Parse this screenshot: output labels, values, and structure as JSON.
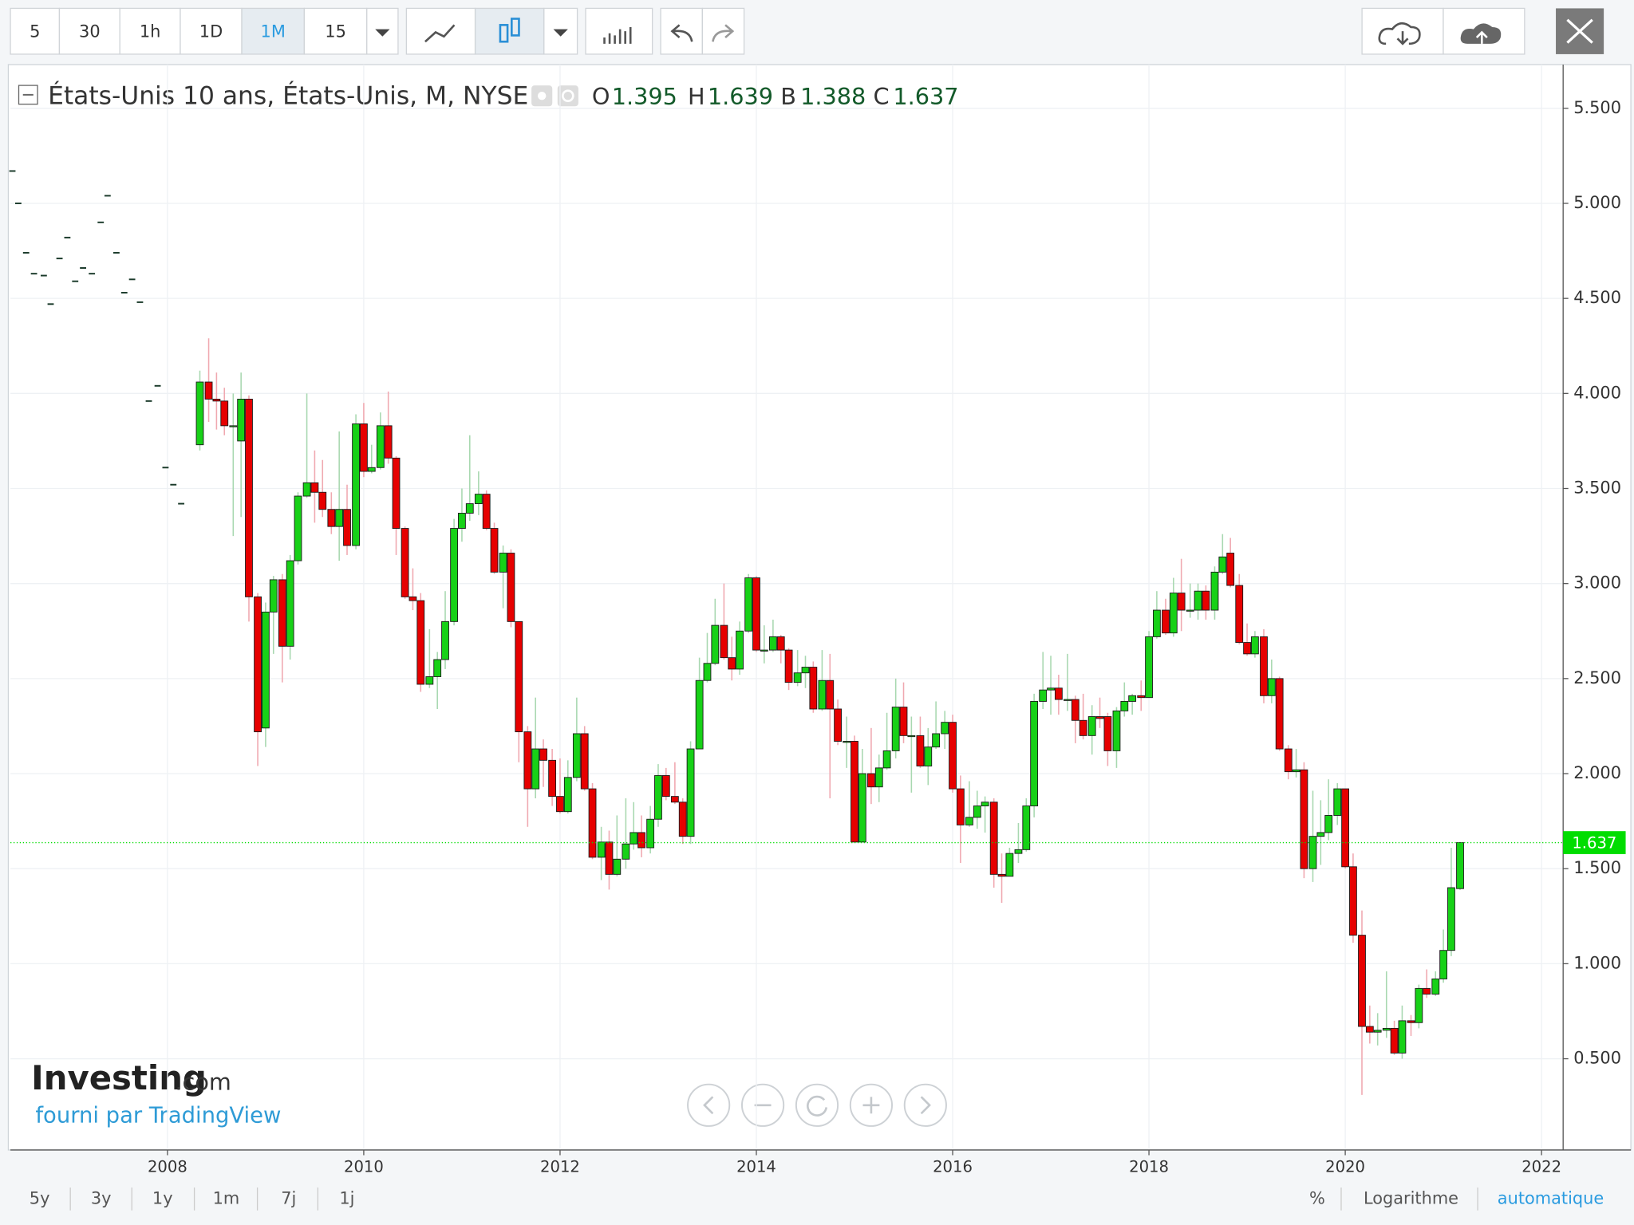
{
  "toolbar": {
    "intervals": [
      "5",
      "30",
      "1h",
      "1D",
      "1M",
      "15"
    ],
    "active": "1M"
  },
  "bottom_bar": {
    "ranges": [
      "5y",
      "3y",
      "1y",
      "1m",
      "7j",
      "1j"
    ],
    "options": [
      "%",
      "Logarithme",
      "automatique"
    ]
  },
  "logo": {
    "name": "Investing",
    "suffix": ".com",
    "credit": "fourni par TradingView"
  },
  "chart_data": {
    "type": "candlestick",
    "title": "États-Unis 10 ans, États-Unis, M, NYSE",
    "ohlc_labels": [
      "O",
      "H",
      "B",
      "C"
    ],
    "up_color": "#17d117",
    "down_color": "#e60000",
    "price_line_color": "#00dd00",
    "xlim": [
      2006.4,
      2022.22
    ],
    "xticks": [
      2008,
      2010,
      2012,
      2014,
      2016,
      2018,
      2020,
      2022
    ],
    "ylim": [
      0.02,
      5.73
    ],
    "yticks": [
      {
        "value": 0.5,
        "label": "0.500"
      },
      {
        "value": 1,
        "label": "1.000"
      },
      {
        "value": 1.5,
        "label": "1.500"
      },
      {
        "value": 2,
        "label": "2.000"
      },
      {
        "value": 2.5,
        "label": "2.500"
      },
      {
        "value": 3,
        "label": "3.000"
      },
      {
        "value": 3.5,
        "label": "3.500"
      },
      {
        "value": 4,
        "label": "4.000"
      },
      {
        "value": 4.5,
        "label": "4.500"
      },
      {
        "value": 5,
        "label": "5.000"
      },
      {
        "value": 5.5,
        "label": "5.500"
      }
    ],
    "grid": true,
    "early_prices": {
      "x": [
        2006.42,
        2006.48,
        2006.56,
        2006.64,
        2006.74,
        2006.81,
        2006.9,
        2006.98,
        2007.06,
        2007.14,
        2007.23,
        2007.32,
        2007.39,
        2007.48,
        2007.56,
        2007.64,
        2007.72,
        2007.81,
        2007.9,
        2007.98,
        2008.06,
        2008.14
      ],
      "values": [
        5.17,
        5.0,
        4.74,
        4.63,
        4.62,
        4.47,
        4.71,
        4.82,
        4.59,
        4.66,
        4.63,
        4.9,
        5.04,
        4.74,
        4.53,
        4.6,
        4.48,
        3.96,
        4.04,
        3.61,
        3.52,
        3.42
      ]
    },
    "x": [
      2008.33,
      2008.42,
      2008.5,
      2008.58,
      2008.67,
      2008.75,
      2008.83,
      2008.92,
      2009,
      2009.08,
      2009.17,
      2009.25,
      2009.33,
      2009.42,
      2009.5,
      2009.58,
      2009.67,
      2009.75,
      2009.83,
      2009.92,
      2010,
      2010.08,
      2010.17,
      2010.25,
      2010.33,
      2010.42,
      2010.5,
      2010.58,
      2010.67,
      2010.75,
      2010.83,
      2010.92,
      2011,
      2011.08,
      2011.17,
      2011.25,
      2011.33,
      2011.42,
      2011.5,
      2011.58,
      2011.67,
      2011.75,
      2011.83,
      2011.92,
      2012,
      2012.08,
      2012.17,
      2012.25,
      2012.33,
      2012.42,
      2012.5,
      2012.58,
      2012.67,
      2012.75,
      2012.83,
      2012.92,
      2013,
      2013.08,
      2013.17,
      2013.25,
      2013.33,
      2013.42,
      2013.5,
      2013.58,
      2013.67,
      2013.75,
      2013.83,
      2013.92,
      2014,
      2014.08,
      2014.17,
      2014.25,
      2014.33,
      2014.42,
      2014.5,
      2014.58,
      2014.67,
      2014.75,
      2014.83,
      2014.92,
      2015,
      2015.08,
      2015.17,
      2015.25,
      2015.33,
      2015.42,
      2015.5,
      2015.58,
      2015.67,
      2015.75,
      2015.83,
      2015.92,
      2016,
      2016.08,
      2016.17,
      2016.25,
      2016.33,
      2016.42,
      2016.5,
      2016.58,
      2016.67,
      2016.75,
      2016.83,
      2016.92,
      2017,
      2017.08,
      2017.17,
      2017.25,
      2017.33,
      2017.42,
      2017.5,
      2017.58,
      2017.67,
      2017.75,
      2017.83,
      2017.92,
      2018,
      2018.08,
      2018.17,
      2018.25,
      2018.33,
      2018.42,
      2018.5,
      2018.58,
      2018.67,
      2018.75,
      2018.83,
      2018.92,
      2019,
      2019.08,
      2019.17,
      2019.25,
      2019.33,
      2019.42,
      2019.5,
      2019.58,
      2019.67,
      2019.75,
      2019.83,
      2019.92,
      2020,
      2020.08,
      2020.17,
      2020.25,
      2020.33,
      2020.42,
      2020.5,
      2020.58,
      2020.67,
      2020.75,
      2020.83,
      2020.92,
      2021,
      2021.08,
      2021.17
    ],
    "open": [
      3.73,
      4.06,
      3.97,
      3.96,
      3.83,
      3.75,
      3.97,
      2.93,
      2.24,
      2.85,
      3.02,
      2.67,
      3.12,
      3.46,
      3.53,
      3.48,
      3.39,
      3.3,
      3.39,
      3.2,
      3.84,
      3.59,
      3.61,
      3.83,
      3.66,
      3.29,
      2.93,
      2.91,
      2.47,
      2.51,
      2.6,
      2.8,
      3.29,
      3.37,
      3.42,
      3.47,
      3.29,
      3.06,
      3.16,
      2.8,
      2.22,
      1.92,
      2.13,
      2.07,
      1.88,
      1.8,
      1.98,
      2.21,
      1.92,
      1.56,
      1.64,
      1.47,
      1.55,
      1.63,
      1.69,
      1.61,
      1.76,
      1.99,
      1.88,
      1.85,
      1.67,
      2.13,
      2.49,
      2.58,
      2.78,
      2.61,
      2.55,
      2.75,
      3.03,
      2.65,
      2.65,
      2.72,
      2.65,
      2.48,
      2.53,
      2.56,
      2.34,
      2.49,
      2.34,
      2.17,
      2.17,
      1.64,
      2.0,
      1.93,
      2.03,
      2.12,
      2.35,
      2.2,
      2.2,
      2.04,
      2.14,
      2.21,
      2.27,
      1.92,
      1.73,
      1.77,
      1.83,
      1.85,
      1.47,
      1.46,
      1.58,
      1.6,
      1.83,
      2.38,
      2.44,
      2.45,
      2.39,
      2.39,
      2.28,
      2.2,
      2.3,
      2.3,
      2.12,
      2.33,
      2.38,
      2.41,
      2.4,
      2.72,
      2.86,
      2.74,
      2.95,
      2.86,
      2.86,
      2.96,
      2.86,
      3.06,
      3.16,
      2.99,
      2.69,
      2.63,
      2.72,
      2.41,
      2.5,
      2.13,
      2.01,
      2.02,
      1.5,
      1.67,
      1.69,
      1.78,
      1.92,
      1.51,
      1.15,
      0.67,
      0.64,
      0.65,
      0.66,
      0.53,
      0.7,
      0.69,
      0.87,
      0.84,
      0.92,
      1.07,
      1.395
    ],
    "high": [
      4.12,
      4.29,
      4.11,
      4.03,
      4.0,
      4.11,
      3.99,
      2.95,
      2.9,
      3.04,
      3.05,
      3.15,
      3.48,
      4.0,
      3.7,
      3.65,
      3.48,
      3.8,
      3.52,
      3.89,
      3.95,
      3.73,
      3.9,
      4.01,
      3.67,
      3.3,
      3.08,
      2.95,
      2.76,
      2.64,
      2.96,
      3.34,
      3.5,
      3.78,
      3.59,
      3.49,
      3.32,
      3.2,
      3.18,
      2.8,
      2.25,
      2.4,
      2.18,
      2.13,
      2.08,
      2.07,
      2.4,
      2.25,
      1.95,
      1.72,
      1.7,
      1.78,
      1.87,
      1.85,
      1.78,
      1.83,
      2.05,
      2.03,
      2.06,
      1.87,
      2.17,
      2.61,
      2.74,
      2.92,
      3.0,
      2.72,
      2.8,
      3.05,
      3.04,
      2.78,
      2.81,
      2.73,
      2.66,
      2.65,
      2.62,
      2.59,
      2.65,
      2.63,
      2.39,
      2.3,
      2.2,
      2.13,
      2.24,
      2.1,
      2.32,
      2.5,
      2.48,
      2.3,
      2.3,
      2.24,
      2.38,
      2.33,
      2.31,
      1.99,
      1.96,
      1.91,
      1.88,
      1.87,
      1.58,
      1.61,
      1.74,
      1.87,
      2.42,
      2.64,
      2.62,
      2.52,
      2.63,
      2.41,
      2.42,
      2.36,
      2.4,
      2.32,
      2.35,
      2.48,
      2.42,
      2.49,
      2.75,
      2.96,
      2.92,
      3.03,
      3.13,
      3.0,
      3.0,
      2.99,
      3.09,
      3.26,
      3.24,
      3.05,
      2.79,
      2.75,
      2.76,
      2.6,
      2.51,
      2.15,
      2.13,
      2.06,
      1.91,
      1.86,
      1.97,
      1.95,
      1.92,
      1.58,
      1.28,
      0.78,
      0.74,
      0.96,
      0.7,
      0.78,
      0.73,
      0.89,
      0.97,
      0.96,
      1.18,
      1.61,
      1.639
    ],
    "low": [
      3.7,
      3.85,
      3.81,
      3.78,
      3.25,
      3.35,
      2.8,
      2.04,
      2.14,
      2.63,
      2.48,
      2.6,
      3.1,
      3.45,
      3.32,
      3.35,
      3.26,
      3.12,
      3.15,
      3.18,
      3.56,
      3.58,
      3.6,
      3.63,
      3.15,
      2.92,
      2.86,
      2.43,
      2.45,
      2.34,
      2.55,
      2.78,
      3.22,
      3.33,
      3.36,
      3.28,
      3.05,
      2.87,
      2.77,
      2.06,
      1.72,
      1.87,
      1.93,
      1.83,
      1.79,
      1.79,
      1.96,
      1.91,
      1.55,
      1.44,
      1.39,
      1.46,
      1.5,
      1.6,
      1.56,
      1.58,
      1.72,
      1.86,
      1.84,
      1.63,
      1.63,
      2.13,
      2.48,
      2.57,
      2.6,
      2.49,
      2.52,
      2.74,
      2.64,
      2.58,
      2.64,
      2.58,
      2.44,
      2.46,
      2.45,
      2.32,
      2.33,
      1.87,
      2.15,
      2.03,
      1.64,
      1.64,
      1.84,
      1.85,
      2.02,
      2.08,
      2.16,
      1.9,
      2.03,
      1.94,
      2.13,
      2.13,
      1.9,
      1.53,
      1.72,
      1.71,
      1.69,
      1.4,
      1.32,
      1.46,
      1.53,
      1.59,
      1.77,
      2.34,
      2.31,
      2.31,
      2.33,
      2.16,
      2.18,
      2.1,
      2.24,
      2.04,
      2.03,
      2.3,
      2.31,
      2.33,
      2.4,
      2.71,
      2.73,
      2.72,
      2.75,
      2.82,
      2.81,
      2.81,
      2.81,
      3.05,
      2.98,
      2.68,
      2.62,
      2.61,
      2.37,
      2.37,
      2.12,
      1.97,
      1.98,
      1.45,
      1.43,
      1.52,
      1.65,
      1.73,
      1.5,
      1.11,
      0.31,
      0.58,
      0.57,
      0.61,
      0.52,
      0.5,
      0.62,
      0.66,
      0.82,
      0.83,
      0.9,
      1.04,
      1.388
    ],
    "close": [
      4.06,
      3.97,
      3.96,
      3.83,
      3.83,
      3.97,
      2.93,
      2.22,
      2.85,
      3.02,
      2.67,
      3.12,
      3.46,
      3.53,
      3.48,
      3.39,
      3.3,
      3.39,
      3.2,
      3.84,
      3.59,
      3.61,
      3.83,
      3.66,
      3.29,
      2.93,
      2.91,
      2.47,
      2.51,
      2.6,
      2.8,
      3.29,
      3.37,
      3.42,
      3.47,
      3.29,
      3.06,
      3.16,
      2.8,
      2.22,
      1.92,
      2.13,
      2.07,
      1.88,
      1.8,
      1.98,
      2.21,
      1.92,
      1.56,
      1.64,
      1.47,
      1.55,
      1.63,
      1.69,
      1.61,
      1.76,
      1.99,
      1.88,
      1.85,
      1.67,
      2.13,
      2.49,
      2.58,
      2.78,
      2.61,
      2.55,
      2.75,
      3.03,
      2.65,
      2.65,
      2.72,
      2.65,
      2.48,
      2.53,
      2.56,
      2.34,
      2.49,
      2.34,
      2.17,
      2.17,
      1.64,
      2.0,
      1.93,
      2.03,
      2.12,
      2.35,
      2.2,
      2.2,
      2.04,
      2.14,
      2.21,
      2.27,
      1.92,
      1.73,
      1.77,
      1.83,
      1.85,
      1.47,
      1.46,
      1.58,
      1.6,
      1.83,
      2.38,
      2.44,
      2.45,
      2.39,
      2.39,
      2.28,
      2.2,
      2.3,
      2.29,
      2.12,
      2.33,
      2.38,
      2.41,
      2.4,
      2.72,
      2.86,
      2.74,
      2.95,
      2.86,
      2.86,
      2.96,
      2.86,
      3.06,
      3.14,
      2.99,
      2.69,
      2.63,
      2.72,
      2.41,
      2.5,
      2.13,
      2.01,
      2.02,
      1.5,
      1.67,
      1.69,
      1.78,
      1.92,
      1.51,
      1.15,
      0.67,
      0.64,
      0.65,
      0.66,
      0.53,
      0.7,
      0.69,
      0.87,
      0.84,
      0.92,
      1.07,
      1.4,
      1.637
    ]
  }
}
